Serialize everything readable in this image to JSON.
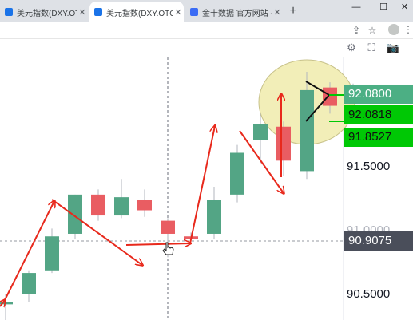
{
  "tabs": [
    {
      "label": "美元指数(DXY.OTC) - 实",
      "close": "✕",
      "favicon_color": "#1a73e8"
    },
    {
      "label": "美元指数(DXY.OTC)图表",
      "close": "✕",
      "favicon_color": "#1a73e8"
    },
    {
      "label": "金十数据 官方网站 - 一",
      "close": "✕",
      "favicon_color": "#3b6cf5"
    }
  ],
  "window": {
    "new_tab": "+",
    "minimize": "—",
    "maximize": "☐",
    "close": "✕"
  },
  "toolbar_icons": {
    "share": "⇪",
    "star": "☆",
    "account": "●",
    "menu": "⋮"
  },
  "chart_toolbar": {
    "settings": "⚙",
    "fullscreen": "⛶",
    "snapshot": "📷"
  },
  "price_scale": {
    "labels": [
      "91.5000",
      "91.0000",
      "90.5000"
    ],
    "current": "92.0800",
    "high": "92.0818",
    "low": "91.8527",
    "crosshair": "90.9075"
  },
  "colors": {
    "up": "#53a585",
    "down": "#e95d62",
    "green_label": "#00c805",
    "current_label": "#4caf84",
    "crosshair_label": "#4a4e5a",
    "ellipse": "#f2eeb8",
    "arrow": "#e8291c"
  },
  "chart_data": {
    "type": "candlestick",
    "candles": [
      {
        "open": 90.4,
        "high": 90.48,
        "low": 90.2,
        "close": 90.42
      },
      {
        "open": 90.48,
        "high": 90.66,
        "low": 90.42,
        "close": 90.64
      },
      {
        "open": 90.66,
        "high": 90.98,
        "low": 90.64,
        "close": 90.92
      },
      {
        "open": 90.94,
        "high": 91.24,
        "low": 90.9,
        "close": 91.24
      },
      {
        "open": 91.24,
        "high": 91.28,
        "low": 91.04,
        "close": 91.08
      },
      {
        "open": 91.08,
        "high": 91.36,
        "low": 91.06,
        "close": 91.22
      },
      {
        "open": 91.2,
        "high": 91.28,
        "low": 91.07,
        "close": 91.12
      },
      {
        "open": 91.04,
        "high": 91.06,
        "low": 90.76,
        "close": 90.94
      },
      {
        "open": 90.92,
        "high": 90.95,
        "low": 90.89,
        "close": 90.9
      },
      {
        "open": 90.94,
        "high": 91.3,
        "low": 90.9,
        "close": 91.2
      },
      {
        "open": 91.24,
        "high": 91.62,
        "low": 91.18,
        "close": 91.56
      },
      {
        "open": 91.66,
        "high": 91.86,
        "low": 91.48,
        "close": 91.78
      },
      {
        "open": 91.76,
        "high": 91.8,
        "low": 91.38,
        "close": 91.5
      },
      {
        "open": 91.42,
        "high": 92.18,
        "low": 91.36,
        "close": 92.04
      },
      {
        "open": 92.06,
        "high": 92.1,
        "low": 91.86,
        "close": 91.92
      },
      {
        "open": 91.98,
        "high": 92.09,
        "low": 91.96,
        "close": 92.08
      }
    ],
    "ylim": [
      90.28,
      92.29
    ]
  }
}
